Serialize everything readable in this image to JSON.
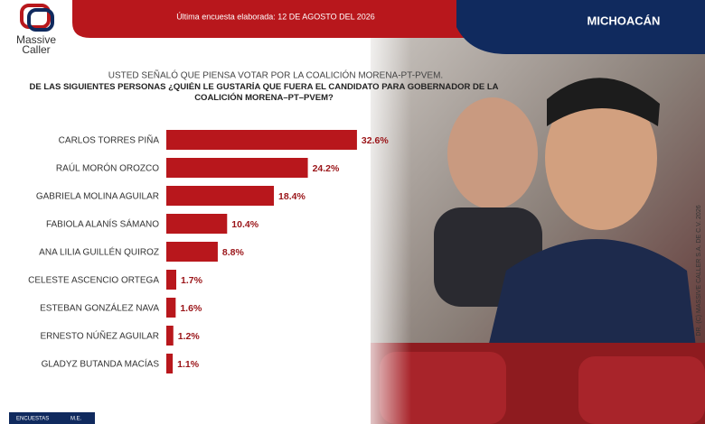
{
  "header": {
    "brand_top": "Massive",
    "brand_bottom": "Caller",
    "survey_date": "Última encuesta elaborada: 12 DE AGOSTO DEL 2026",
    "region": "MICHOACÁN",
    "copyright": "DR. (C) MASSIVE CALLER S.A. DE C.V. 2026",
    "footer_left": "ENCUESTAS",
    "footer_right": "M.E."
  },
  "chart_data": {
    "type": "hbar",
    "subtitle": "USTED SEÑALÓ QUE PIENSA VOTAR POR LA COALICIÓN MORENA-PT-PVEM.",
    "title": "DE LAS SIGUIENTES PERSONAS ¿QUIÉN LE GUSTARÍA QUE FUERA EL CANDIDATO PARA GOBERNADOR DE LA COALICIÓN MORENA–PT–PVEM?",
    "categories": [
      "CARLOS TORRES PIÑA",
      "RAÚL MORÓN OROZCO",
      "GABRIELA MOLINA AGUILAR",
      "FABIOLA ALANÍS SÁMANO",
      "ANA LILIA GUILLÉN QUIROZ",
      "CELESTE ASCENCIO ORTEGA",
      "ESTEBAN GONZÁLEZ NAVA",
      "ERNESTO NÚÑEZ AGUILAR",
      "GLADYZ BUTANDA MACÍAS"
    ],
    "values": [
      32.6,
      24.2,
      18.4,
      10.4,
      8.8,
      1.7,
      1.6,
      1.2,
      1.1
    ],
    "value_labels": [
      "32.6%",
      "24.2%",
      "18.4%",
      "10.4%",
      "8.8%",
      "1.7%",
      "1.6%",
      "1.2%",
      "1.1%"
    ],
    "color": "#b8171c"
  }
}
